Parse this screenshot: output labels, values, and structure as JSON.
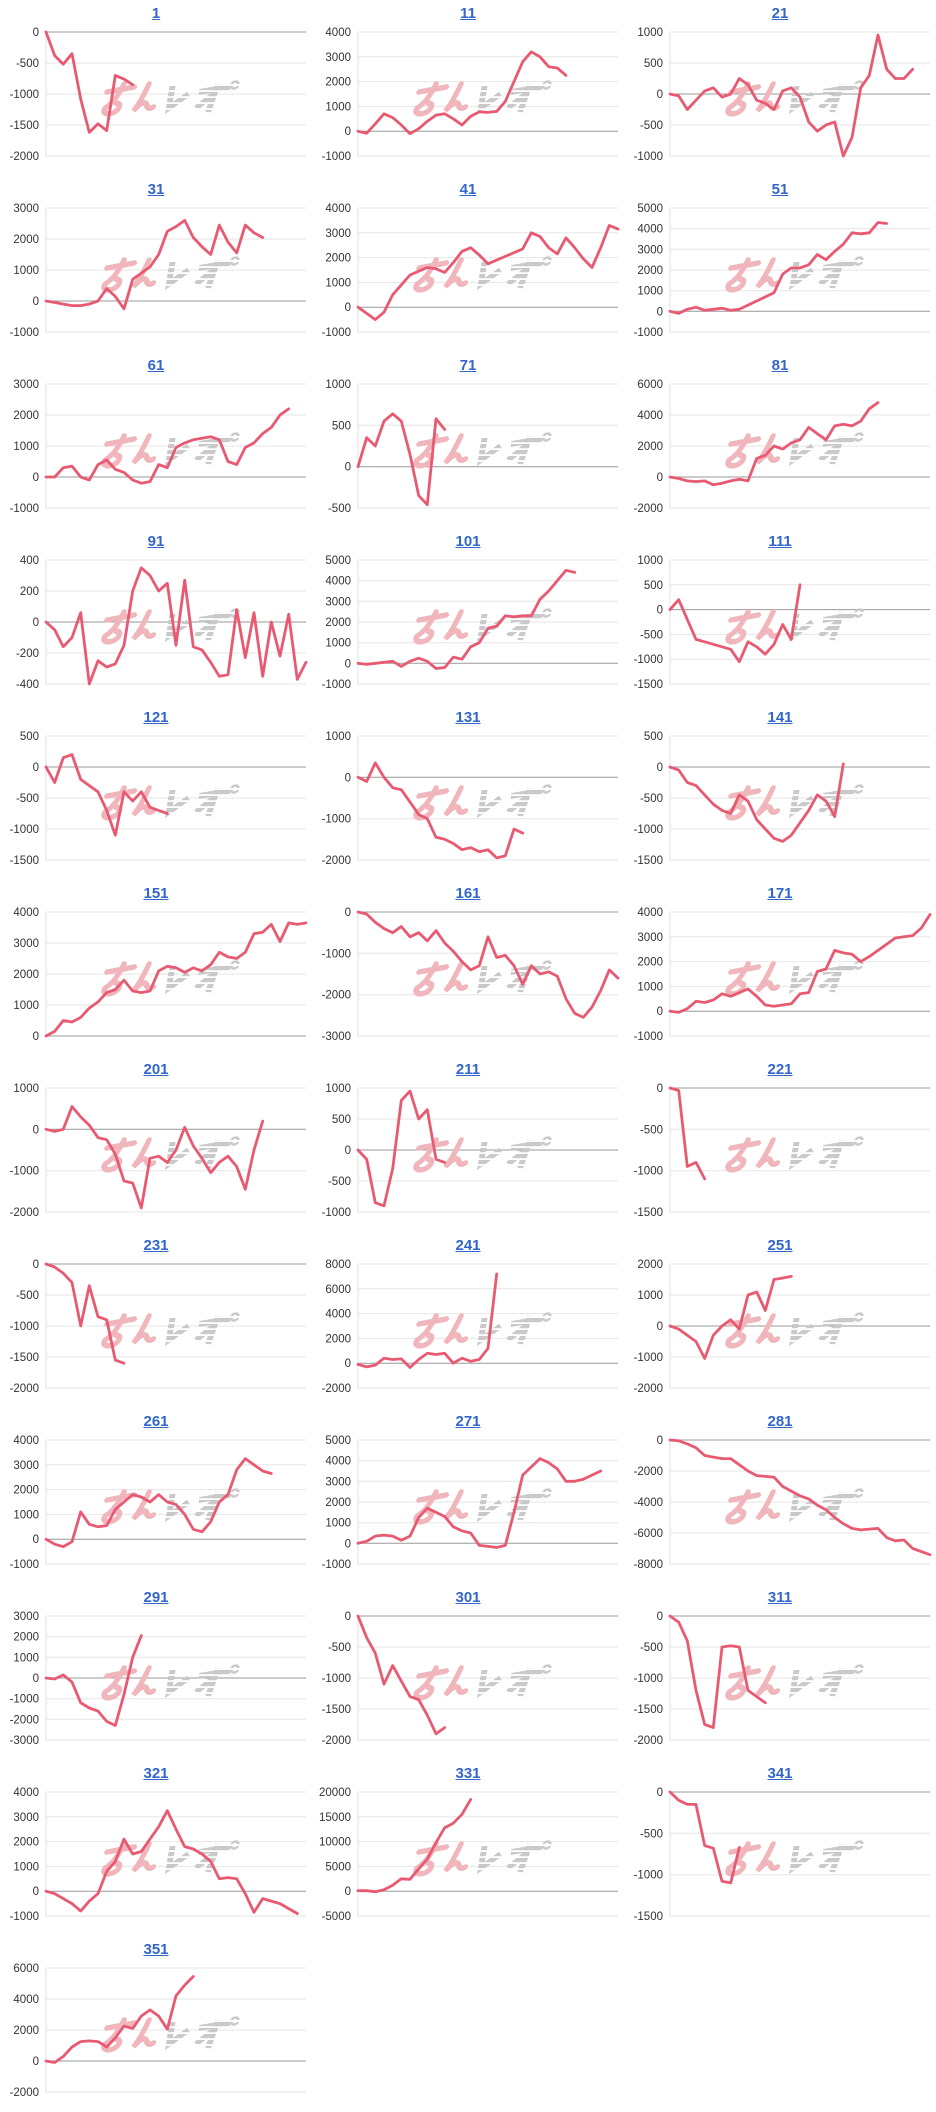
{
  "page": {
    "background": "#ffffff"
  },
  "style": {
    "line_color": "#e85a72",
    "grid_color": "#e6e6e6",
    "zero_line_color": "#999999",
    "axis_line_color": "#e0e0e0",
    "label_color": "#333333",
    "title_color": "#3366cc",
    "watermark_pink": "#f1b6bc",
    "watermark_gray": "#c9c9c9"
  },
  "watermark": {
    "text": "みんレポ"
  },
  "chart_data": [
    {
      "type": "line",
      "title": "1",
      "ylim": [
        -2000,
        0
      ],
      "tick_step": 500,
      "x_slots": 31,
      "values": [
        0,
        -380,
        -520,
        -350,
        -1080,
        -1620,
        -1480,
        -1590,
        -700,
        -760,
        -850
      ]
    },
    {
      "type": "line",
      "title": "11",
      "ylim": [
        -1000,
        4000
      ],
      "tick_step": 1000,
      "x_slots": 31,
      "values": [
        0,
        -80,
        300,
        700,
        550,
        250,
        -100,
        100,
        400,
        650,
        700,
        500,
        250,
        600,
        780,
        760,
        800,
        1200,
        2000,
        2800,
        3200,
        3000,
        2600,
        2550,
        2250
      ]
    },
    {
      "type": "line",
      "title": "21",
      "ylim": [
        -1000,
        1000
      ],
      "tick_step": 500,
      "x_slots": 31,
      "values": [
        0,
        -30,
        -250,
        -100,
        50,
        100,
        -50,
        0,
        250,
        150,
        -100,
        -150,
        -250,
        50,
        100,
        -50,
        -450,
        -600,
        -500,
        -450,
        -1000,
        -700,
        100,
        300,
        950,
        400,
        250,
        250,
        400
      ]
    },
    {
      "type": "line",
      "title": "31",
      "ylim": [
        -1000,
        3000
      ],
      "tick_step": 1000,
      "x_slots": 31,
      "values": [
        0,
        -50,
        -100,
        -150,
        -150,
        -100,
        0,
        400,
        150,
        -250,
        700,
        900,
        1100,
        1500,
        2250,
        2400,
        2600,
        2050,
        1750,
        1500,
        2450,
        1900,
        1550,
        2450,
        2200,
        2050
      ]
    },
    {
      "type": "line",
      "title": "41",
      "ylim": [
        -1000,
        4000
      ],
      "tick_step": 1000,
      "x_slots": 31,
      "values": [
        0,
        -250,
        -500,
        -200,
        500,
        900,
        1300,
        1450,
        1600,
        1550,
        1400,
        1800,
        2250,
        2400,
        2100,
        1750,
        1900,
        2050,
        2200,
        2350,
        3000,
        2850,
        2400,
        2150,
        2800,
        2400,
        1950,
        1600,
        2400,
        3300,
        3150
      ]
    },
    {
      "type": "line",
      "title": "51",
      "ylim": [
        -1000,
        5000
      ],
      "tick_step": 1000,
      "x_slots": 31,
      "values": [
        0,
        -100,
        100,
        200,
        50,
        100,
        150,
        50,
        100,
        300,
        500,
        700,
        900,
        1800,
        2100,
        2100,
        2250,
        2750,
        2500,
        2900,
        3250,
        3800,
        3750,
        3800,
        4300,
        4250
      ]
    },
    {
      "type": "line",
      "title": "61",
      "ylim": [
        -1000,
        3000
      ],
      "tick_step": 1000,
      "x_slots": 31,
      "values": [
        0,
        0,
        300,
        350,
        0,
        -100,
        400,
        550,
        250,
        150,
        -100,
        -200,
        -150,
        400,
        300,
        950,
        1100,
        1200,
        1250,
        1300,
        1200,
        500,
        400,
        950,
        1100,
        1400,
        1600,
        2000,
        2200
      ]
    },
    {
      "type": "line",
      "title": "71",
      "ylim": [
        -500,
        1000
      ],
      "tick_step": 500,
      "x_slots": 31,
      "values": [
        0,
        350,
        250,
        550,
        640,
        550,
        150,
        -350,
        -460,
        580,
        450
      ]
    },
    {
      "type": "line",
      "title": "81",
      "ylim": [
        -2000,
        6000
      ],
      "tick_step": 2000,
      "x_slots": 31,
      "values": [
        0,
        -100,
        -250,
        -300,
        -250,
        -500,
        -400,
        -250,
        -150,
        -250,
        1200,
        1400,
        2000,
        1800,
        2200,
        2400,
        3200,
        2800,
        2400,
        3300,
        3400,
        3300,
        3600,
        4400,
        4800
      ]
    },
    {
      "type": "line",
      "title": "91",
      "ylim": [
        -400,
        400
      ],
      "tick_step": 200,
      "x_slots": 31,
      "values": [
        0,
        -50,
        -160,
        -100,
        60,
        -400,
        -250,
        -290,
        -270,
        -150,
        200,
        350,
        300,
        200,
        250,
        -150,
        270,
        -160,
        -180,
        -260,
        -350,
        -340,
        80,
        -230,
        60,
        -350,
        0,
        -220,
        50,
        -370,
        -260
      ]
    },
    {
      "type": "line",
      "title": "101",
      "ylim": [
        -1000,
        5000
      ],
      "tick_step": 1000,
      "x_slots": 31,
      "values": [
        0,
        -50,
        0,
        50,
        100,
        -150,
        100,
        250,
        100,
        -250,
        -200,
        300,
        200,
        800,
        1000,
        1700,
        1800,
        2300,
        2250,
        2300,
        2300,
        3100,
        3500,
        4000,
        4500,
        4400
      ]
    },
    {
      "type": "line",
      "title": "111",
      "ylim": [
        -1500,
        1000
      ],
      "tick_step": 500,
      "x_slots": 31,
      "values": [
        0,
        200,
        -200,
        -600,
        -650,
        -700,
        -750,
        -800,
        -1050,
        -650,
        -750,
        -900,
        -700,
        -300,
        -600,
        500
      ]
    },
    {
      "type": "line",
      "title": "121",
      "ylim": [
        -1500,
        500
      ],
      "tick_step": 500,
      "x_slots": 31,
      "values": [
        0,
        -250,
        150,
        200,
        -200,
        -300,
        -400,
        -700,
        -1100,
        -400,
        -550,
        -400,
        -650,
        -700,
        -750
      ]
    },
    {
      "type": "line",
      "title": "131",
      "ylim": [
        -2000,
        1000
      ],
      "tick_step": 1000,
      "x_slots": 31,
      "values": [
        0,
        -100,
        350,
        0,
        -250,
        -300,
        -600,
        -900,
        -1000,
        -1450,
        -1500,
        -1600,
        -1750,
        -1700,
        -1800,
        -1750,
        -1950,
        -1900,
        -1250,
        -1350
      ]
    },
    {
      "type": "line",
      "title": "141",
      "ylim": [
        -1500,
        500
      ],
      "tick_step": 500,
      "x_slots": 31,
      "values": [
        0,
        -50,
        -250,
        -300,
        -450,
        -600,
        -700,
        -750,
        -450,
        -550,
        -850,
        -1000,
        -1150,
        -1200,
        -1100,
        -900,
        -700,
        -450,
        -550,
        -800,
        50
      ]
    },
    {
      "type": "line",
      "title": "151",
      "ylim": [
        0,
        4000
      ],
      "tick_step": 1000,
      "x_slots": 31,
      "values": [
        0,
        150,
        500,
        450,
        600,
        900,
        1100,
        1400,
        1500,
        1800,
        1450,
        1400,
        1450,
        2100,
        2250,
        2200,
        2050,
        2200,
        2100,
        2300,
        2700,
        2550,
        2500,
        2700,
        3300,
        3350,
        3600,
        3050,
        3650,
        3600,
        3650
      ]
    },
    {
      "type": "line",
      "title": "161",
      "ylim": [
        -3000,
        0
      ],
      "tick_step": 1000,
      "x_slots": 31,
      "values": [
        0,
        -50,
        -250,
        -400,
        -500,
        -350,
        -600,
        -500,
        -700,
        -450,
        -750,
        -950,
        -1200,
        -1400,
        -1300,
        -600,
        -1100,
        -1050,
        -1300,
        -1750,
        -1300,
        -1500,
        -1450,
        -1550,
        -2100,
        -2450,
        -2550,
        -2300,
        -1900,
        -1400,
        -1600
      ]
    },
    {
      "type": "line",
      "title": "171",
      "ylim": [
        -1000,
        4000
      ],
      "tick_step": 1000,
      "x_slots": 31,
      "values": [
        0,
        -50,
        100,
        400,
        350,
        450,
        700,
        600,
        750,
        900,
        600,
        250,
        200,
        250,
        300,
        700,
        750,
        1600,
        1700,
        2450,
        2350,
        2300,
        2000,
        2200,
        2450,
        2700,
        2950,
        3000,
        3050,
        3350,
        3900
      ]
    },
    {
      "type": "line",
      "title": "201",
      "ylim": [
        -2000,
        1000
      ],
      "tick_step": 1000,
      "x_slots": 31,
      "values": [
        0,
        -50,
        0,
        550,
        300,
        100,
        -200,
        -250,
        -600,
        -1250,
        -1300,
        -1900,
        -700,
        -650,
        -800,
        -500,
        50,
        -400,
        -700,
        -1050,
        -800,
        -650,
        -900,
        -1450,
        -500,
        200
      ]
    },
    {
      "type": "line",
      "title": "211",
      "ylim": [
        -1000,
        1000
      ],
      "tick_step": 500,
      "x_slots": 31,
      "values": [
        0,
        -150,
        -850,
        -900,
        -300,
        800,
        950,
        500,
        650,
        -150,
        -200
      ]
    },
    {
      "type": "line",
      "title": "221",
      "ylim": [
        -1500,
        0
      ],
      "tick_step": 500,
      "x_slots": 31,
      "values": [
        0,
        -30,
        -950,
        -900,
        -1100
      ]
    },
    {
      "type": "line",
      "title": "231",
      "ylim": [
        -2000,
        0
      ],
      "tick_step": 500,
      "x_slots": 31,
      "values": [
        0,
        -50,
        -150,
        -300,
        -1000,
        -350,
        -850,
        -900,
        -1550,
        -1600
      ]
    },
    {
      "type": "line",
      "title": "241",
      "ylim": [
        -2000,
        8000
      ],
      "tick_step": 2000,
      "x_slots": 31,
      "values": [
        -100,
        -300,
        -150,
        400,
        300,
        350,
        -350,
        300,
        800,
        700,
        800,
        0,
        400,
        150,
        300,
        1200,
        7200
      ]
    },
    {
      "type": "line",
      "title": "251",
      "ylim": [
        -2000,
        2000
      ],
      "tick_step": 1000,
      "x_slots": 31,
      "values": [
        0,
        -100,
        -300,
        -500,
        -1050,
        -300,
        0,
        200,
        -100,
        1000,
        1100,
        500,
        1500,
        1550,
        1600
      ]
    },
    {
      "type": "line",
      "title": "261",
      "ylim": [
        -1000,
        4000
      ],
      "tick_step": 1000,
      "x_slots": 31,
      "values": [
        0,
        -200,
        -300,
        -100,
        1100,
        600,
        500,
        550,
        1200,
        1500,
        1800,
        1700,
        1500,
        1800,
        1500,
        1400,
        1000,
        400,
        300,
        700,
        1500,
        1800,
        2800,
        3250,
        3000,
        2750,
        2650
      ]
    },
    {
      "type": "line",
      "title": "271",
      "ylim": [
        -1000,
        5000
      ],
      "tick_step": 1000,
      "x_slots": 31,
      "values": [
        0,
        100,
        350,
        400,
        350,
        150,
        350,
        1250,
        1700,
        1500,
        1300,
        800,
        600,
        500,
        -100,
        -150,
        -200,
        -100,
        1500,
        3300,
        3700,
        4100,
        3900,
        3600,
        3000,
        3000,
        3100,
        3300,
        3500
      ]
    },
    {
      "type": "line",
      "title": "281",
      "ylim": [
        -8000,
        0
      ],
      "tick_step": 2000,
      "x_slots": 31,
      "values": [
        0,
        -50,
        -250,
        -500,
        -1000,
        -1100,
        -1200,
        -1200,
        -1600,
        -2000,
        -2300,
        -2350,
        -2400,
        -3000,
        -3300,
        -3600,
        -3800,
        -4200,
        -4500,
        -5000,
        -5400,
        -5700,
        -5800,
        -5750,
        -5700,
        -6300,
        -6500,
        -6450,
        -7000,
        -7200,
        -7400
      ]
    },
    {
      "type": "line",
      "title": "291",
      "ylim": [
        -3000,
        3000
      ],
      "tick_step": 1000,
      "x_slots": 31,
      "values": [
        0,
        -50,
        150,
        -200,
        -1200,
        -1450,
        -1600,
        -2100,
        -2300,
        -800,
        1000,
        2050
      ]
    },
    {
      "type": "line",
      "title": "301",
      "ylim": [
        -2000,
        0
      ],
      "tick_step": 500,
      "x_slots": 31,
      "values": [
        0,
        -350,
        -600,
        -1100,
        -800,
        -1050,
        -1300,
        -1350,
        -1600,
        -1900,
        -1800
      ]
    },
    {
      "type": "line",
      "title": "311",
      "ylim": [
        -2000,
        0
      ],
      "tick_step": 500,
      "x_slots": 31,
      "values": [
        0,
        -100,
        -400,
        -1200,
        -1750,
        -1800,
        -500,
        -480,
        -500,
        -1200,
        -1300,
        -1400
      ]
    },
    {
      "type": "line",
      "title": "321",
      "ylim": [
        -1000,
        4000
      ],
      "tick_step": 1000,
      "x_slots": 31,
      "values": [
        0,
        -100,
        -300,
        -500,
        -800,
        -400,
        -100,
        800,
        1200,
        2100,
        1500,
        1600,
        2100,
        2600,
        3250,
        2500,
        1800,
        1700,
        1500,
        1200,
        500,
        550,
        500,
        -100,
        -850,
        -300,
        -400,
        -500,
        -700,
        -900
      ]
    },
    {
      "type": "line",
      "title": "331",
      "ylim": [
        -5000,
        20000
      ],
      "tick_step": 5000,
      "x_slots": 31,
      "values": [
        100,
        100,
        -100,
        300,
        1200,
        2500,
        2400,
        4500,
        6500,
        9800,
        12800,
        13700,
        15500,
        18500
      ]
    },
    {
      "type": "line",
      "title": "341",
      "ylim": [
        -1500,
        0
      ],
      "tick_step": 500,
      "x_slots": 31,
      "values": [
        0,
        -100,
        -150,
        -150,
        -650,
        -680,
        -1080,
        -1100,
        -670
      ]
    },
    {
      "type": "line",
      "title": "351",
      "ylim": [
        -2000,
        6000
      ],
      "tick_step": 2000,
      "x_slots": 31,
      "values": [
        0,
        -100,
        300,
        900,
        1250,
        1300,
        1250,
        900,
        1500,
        2250,
        2100,
        2900,
        3300,
        2900,
        2050,
        4200,
        4900,
        5450
      ]
    }
  ]
}
